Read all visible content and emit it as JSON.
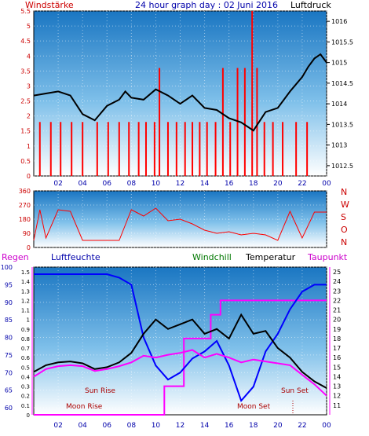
{
  "header": {
    "left": "Windstärke",
    "title": "24 hour graph day : 02 Juni 2016",
    "right": "Luftdruck"
  },
  "panel3_labels": {
    "regen": "Regen",
    "luftfeuchte": "Luftfeuchte",
    "windchill": "Windchill",
    "temperatur": "Temperatur",
    "taupunkt": "Taupunkt"
  },
  "compass": [
    "N",
    "W",
    "S",
    "O",
    "N"
  ],
  "annotations": {
    "sun_rise": "Sun Rise",
    "sun_set": "Sun Set",
    "moon_rise": "Moon Rise",
    "moon_set": "Moon Set"
  },
  "colors": {
    "wind": "#ff0000",
    "pressure": "#000000",
    "humidity": "#0000ff",
    "temperature": "#000000",
    "dewpoint": "#ff00ff",
    "rain": "#ff0000",
    "title": "#0000aa",
    "bg_top": "#1e7fc8",
    "bg_bottom": "#ffffff"
  },
  "chart_data": [
    {
      "type": "line",
      "name": "wind-pressure",
      "x_ticks": [
        "02",
        "04",
        "06",
        "08",
        "10",
        "12",
        "14",
        "16",
        "18",
        "20",
        "22",
        "00"
      ],
      "y_left_ticks": [
        "0",
        "0.5",
        "1",
        "1.5",
        "2",
        "2.5",
        "3",
        "3.5",
        "4",
        "4.5",
        "5",
        "5.5"
      ],
      "y_left_range": [
        0,
        5.5
      ],
      "y_right_ticks": [
        "1012.5",
        "1013",
        "1013.5",
        "1014",
        "1014.5",
        "1015",
        "1015.5",
        "1016"
      ],
      "y_right_range": [
        1012.25,
        1016.25
      ],
      "series": [
        {
          "x": [
            0,
            1,
            2,
            3,
            4,
            5,
            6,
            7,
            7.5,
            8,
            9,
            10,
            11,
            12,
            13,
            14,
            15,
            16,
            17,
            17.5,
            18,
            19,
            20,
            21,
            22,
            22.5,
            23,
            23.5,
            24
          ],
          "values": [
            1014.2,
            1014.25,
            1014.3,
            1014.2,
            1013.75,
            1013.6,
            1013.95,
            1014.1,
            1014.3,
            1014.15,
            1014.1,
            1014.35,
            1014.2,
            1014.0,
            1014.2,
            1013.9,
            1013.85,
            1013.65,
            1013.55,
            1013.45,
            1013.35,
            1013.8,
            1013.9,
            1014.3,
            1014.65,
            1014.9,
            1015.1,
            1015.2,
            1015.0
          ]
        },
        {
          "type": "bar",
          "x": [
            0.5,
            1.4,
            2.2,
            3.1,
            4.0,
            5.2,
            6.1,
            7.0,
            7.8,
            8.6,
            9.2,
            9.9,
            10.3,
            11.0,
            11.7,
            12.4,
            13.0,
            13.6,
            14.2,
            14.9,
            15.5,
            16.1,
            16.7,
            17.3,
            17.9,
            18.3,
            18.9,
            19.6,
            20.4,
            21.5,
            22.4
          ],
          "values": [
            1.8,
            1.8,
            1.8,
            1.8,
            1.8,
            1.8,
            1.8,
            1.8,
            1.8,
            1.8,
            1.8,
            1.8,
            3.6,
            1.8,
            1.8,
            1.8,
            1.8,
            1.8,
            1.8,
            1.8,
            3.6,
            1.8,
            3.6,
            3.6,
            5.5,
            3.6,
            1.8,
            1.8,
            1.8,
            1.8,
            1.8
          ]
        }
      ]
    },
    {
      "type": "line",
      "name": "wind-direction",
      "y_ticks": [
        "0",
        "90",
        "180",
        "270",
        "360"
      ],
      "y_range": [
        0,
        360
      ],
      "series": [
        {
          "x": [
            0,
            0.5,
            1,
            2,
            3,
            4,
            5,
            6,
            7,
            8,
            9,
            10,
            11,
            12,
            13,
            14,
            15,
            16,
            17,
            18,
            19,
            20,
            21,
            22,
            23,
            24
          ],
          "values": [
            45,
            240,
            60,
            240,
            230,
            45,
            45,
            45,
            45,
            240,
            200,
            250,
            170,
            180,
            150,
            110,
            90,
            100,
            80,
            90,
            80,
            45,
            230,
            60,
            225,
            225
          ]
        }
      ]
    },
    {
      "type": "line",
      "name": "humidity-temperature",
      "y_left_ticks": [
        "60",
        "65",
        "70",
        "75",
        "80",
        "85",
        "90",
        "95",
        "100"
      ],
      "y_left_range": [
        58,
        100
      ],
      "y_rain_ticks": [
        "0",
        "0.1",
        "0.2",
        "0.3",
        "0.4",
        "0.5",
        "0.6",
        "0.7",
        "0.8",
        "0.9",
        "1",
        "1.1",
        "1.2",
        "1.3",
        "1.4",
        "1.5"
      ],
      "y_right_ticks": [
        "11",
        "12",
        "13",
        "14",
        "15",
        "16",
        "17",
        "18",
        "19",
        "20",
        "21",
        "22",
        "23",
        "24",
        "25"
      ],
      "y_right_range": [
        10,
        25.5
      ],
      "series": [
        {
          "x": [
            0,
            1,
            2,
            3,
            4,
            5,
            6,
            7,
            8,
            9,
            10,
            11,
            12,
            13,
            14,
            15,
            16,
            17,
            18,
            19,
            20,
            21,
            22,
            23,
            24
          ],
          "values": [
            98,
            98,
            98,
            98,
            98,
            98,
            98,
            97,
            95,
            80,
            72,
            68,
            70,
            74,
            76,
            79,
            72,
            62,
            66,
            76,
            81,
            88,
            93,
            95,
            95
          ]
        },
        {
          "x": [
            0,
            1,
            2,
            3,
            4,
            5,
            6,
            7,
            8,
            9,
            10,
            11,
            12,
            13,
            14,
            15,
            16,
            17,
            18,
            19,
            20,
            21,
            22,
            23,
            24
          ],
          "values": [
            14.5,
            15.2,
            15.5,
            15.6,
            15.4,
            14.8,
            15.0,
            15.5,
            16.5,
            18.5,
            20.0,
            19.0,
            19.5,
            20.0,
            18.5,
            19.0,
            18.0,
            20.5,
            18.5,
            18.8,
            17.0,
            16.0,
            14.5,
            13.5,
            12.8
          ]
        },
        {
          "x": [
            0,
            1,
            2,
            3,
            4,
            5,
            6,
            7,
            8,
            9,
            10,
            11,
            12,
            13,
            14,
            15,
            16,
            17,
            18,
            19,
            20,
            21,
            22,
            23,
            24
          ],
          "values": [
            14.0,
            14.8,
            15.1,
            15.2,
            15.1,
            14.6,
            14.8,
            15.1,
            15.5,
            16.2,
            16.0,
            16.3,
            16.5,
            16.8,
            16.0,
            16.4,
            16.0,
            15.5,
            15.8,
            15.6,
            15.4,
            15.2,
            14.2,
            13.2,
            12.0
          ]
        },
        {
          "x": [
            0,
            10.7,
            10.7,
            12.3,
            12.3,
            14.5,
            14.5,
            15.3,
            15.3,
            24
          ],
          "values": [
            0,
            0,
            0.3,
            0.3,
            0.8,
            0.8,
            1.05,
            1.05,
            1.2,
            1.2
          ]
        }
      ]
    }
  ]
}
